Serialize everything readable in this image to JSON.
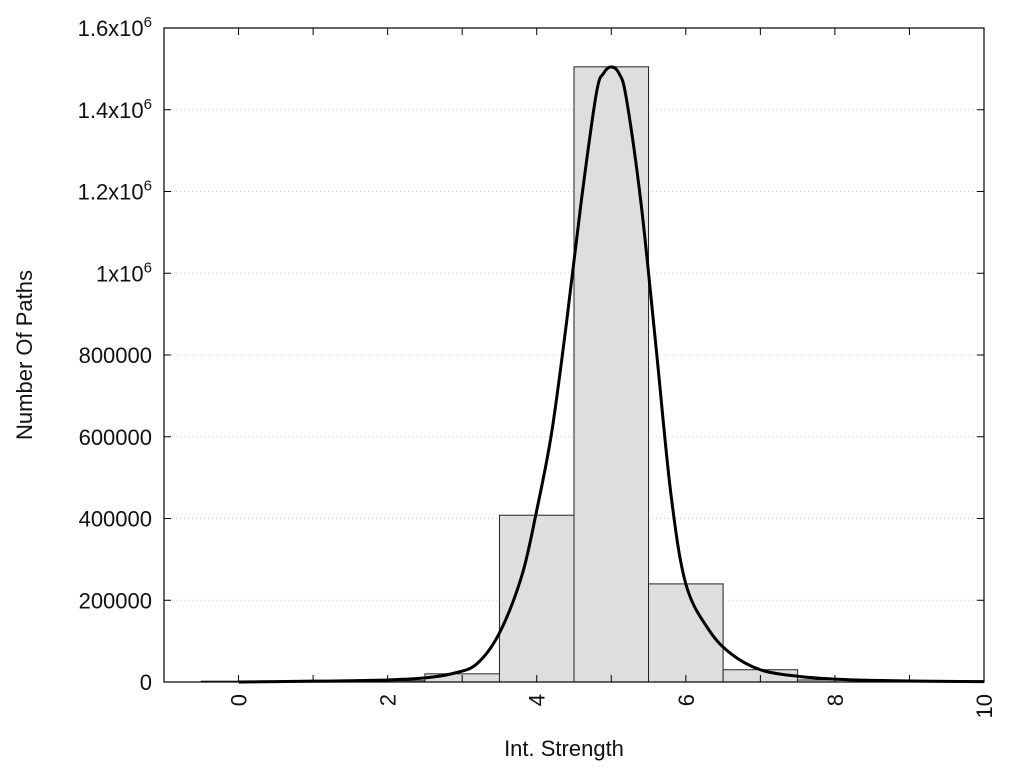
{
  "chart_data": {
    "type": "bar",
    "xlabel": "Int. Strength",
    "ylabel": "Number Of Paths",
    "xlim": [
      -1,
      10
    ],
    "ylim": [
      0,
      1600000
    ],
    "grid": true,
    "x_ticks": [
      {
        "value": 0,
        "label": "0"
      },
      {
        "value": 2,
        "label": "2"
      },
      {
        "value": 4,
        "label": "4"
      },
      {
        "value": 6,
        "label": "6"
      },
      {
        "value": 8,
        "label": "8"
      },
      {
        "value": 10,
        "label": "10"
      }
    ],
    "y_ticks": [
      {
        "value": 0,
        "base": "0",
        "sup": ""
      },
      {
        "value": 200000,
        "base": "200000",
        "sup": ""
      },
      {
        "value": 400000,
        "base": "400000",
        "sup": ""
      },
      {
        "value": 600000,
        "base": "600000",
        "sup": ""
      },
      {
        "value": 800000,
        "base": "800000",
        "sup": ""
      },
      {
        "value": 1000000,
        "base": "1x10",
        "sup": "6"
      },
      {
        "value": 1200000,
        "base": "1.2x10",
        "sup": "6"
      },
      {
        "value": 1400000,
        "base": "1.4x10",
        "sup": "6"
      },
      {
        "value": 1600000,
        "base": "1.6x10",
        "sup": "6"
      }
    ],
    "bar_width": 1,
    "bars": [
      {
        "x": 0,
        "value": 2000
      },
      {
        "x": 1,
        "value": 1000
      },
      {
        "x": 2,
        "value": 3000
      },
      {
        "x": 3,
        "value": 20000
      },
      {
        "x": 4,
        "value": 408000
      },
      {
        "x": 5,
        "value": 1505000
      },
      {
        "x": 6,
        "value": 240000
      },
      {
        "x": 7,
        "value": 30000
      },
      {
        "x": 8,
        "value": 5000
      },
      {
        "x": 9,
        "value": 2000
      }
    ],
    "curve": {
      "x": [
        0,
        0.5,
        1,
        1.5,
        2,
        2.5,
        2.9,
        3.2,
        3.5,
        3.8,
        4.0,
        4.2,
        4.4,
        4.6,
        4.8,
        4.9,
        5.0,
        5.1,
        5.2,
        5.4,
        5.6,
        5.8,
        6.0,
        6.3,
        6.6,
        7.0,
        7.5,
        8.0,
        8.5,
        9.0,
        9.5,
        10.0
      ],
      "y": [
        0,
        1000,
        2000,
        3000,
        5000,
        10000,
        22000,
        45000,
        120000,
        260000,
        420000,
        610000,
        880000,
        1180000,
        1440000,
        1490000,
        1505000,
        1490000,
        1430000,
        1170000,
        820000,
        460000,
        240000,
        130000,
        70000,
        30000,
        14000,
        7000,
        4000,
        2500,
        1500,
        1000
      ]
    },
    "colors": {
      "bar_fill": "#dedede",
      "bar_stroke": "#222222",
      "curve": "#000000",
      "grid": "#cccccc",
      "frame": "#000000"
    }
  }
}
